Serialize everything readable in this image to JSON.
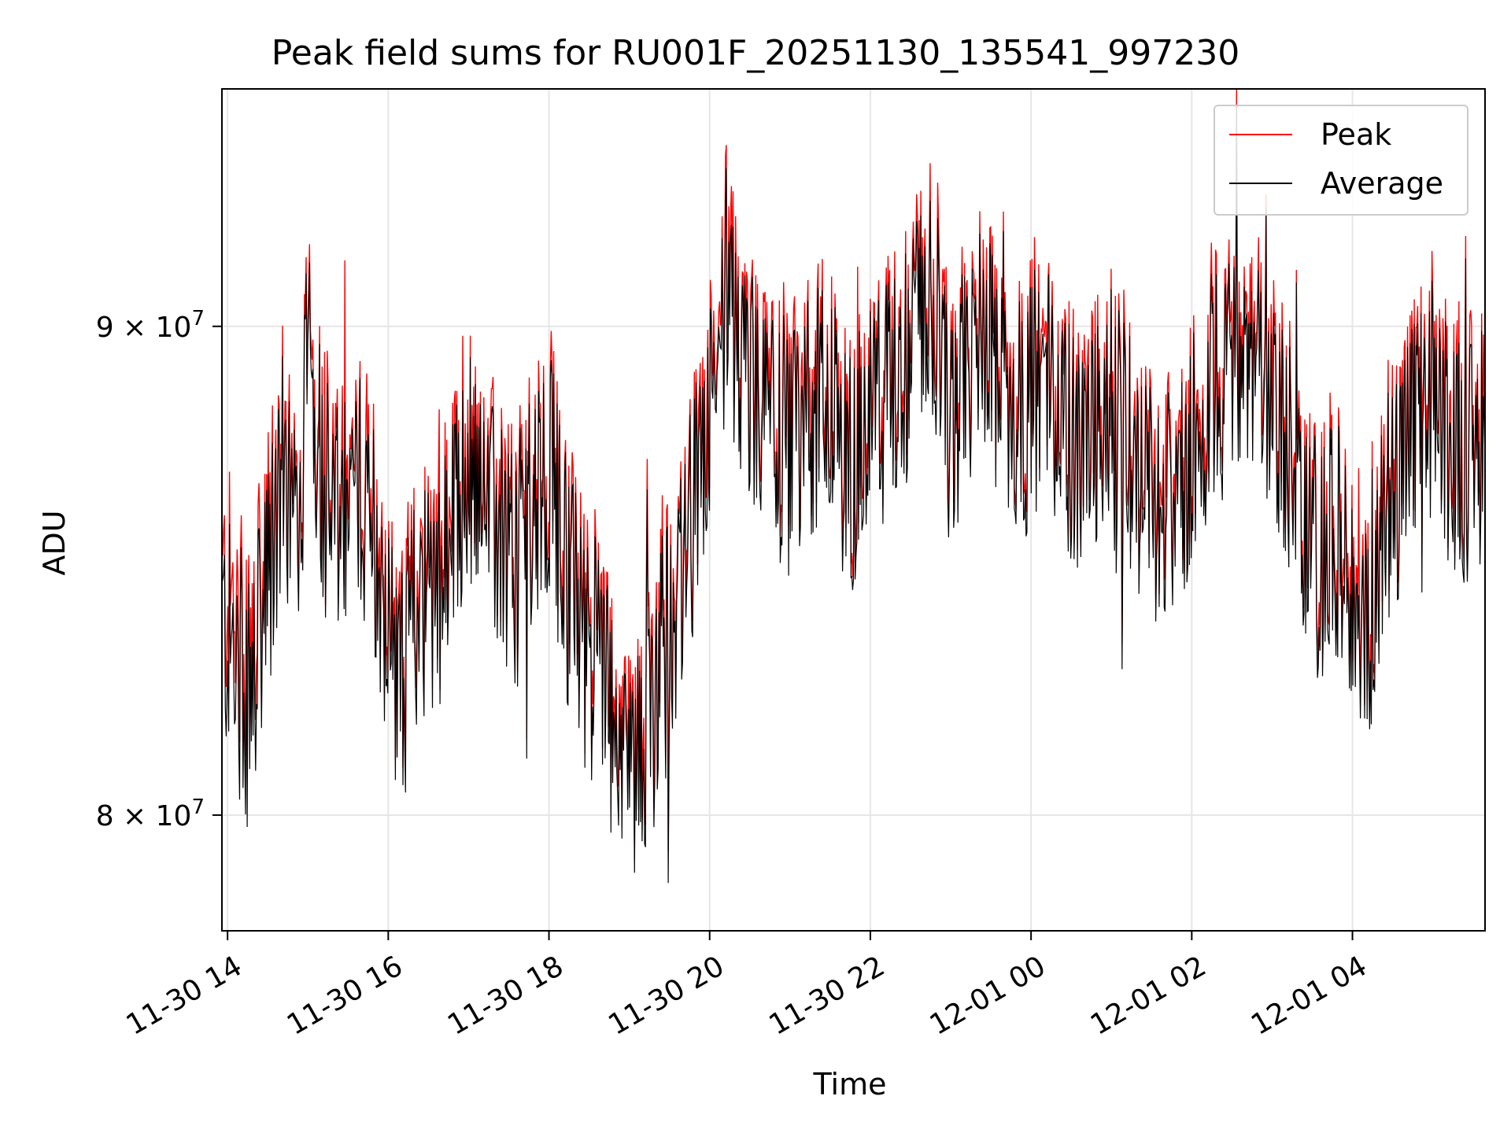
{
  "chart_data": {
    "type": "line",
    "title": "Peak field sums for RU001F_20251130_135541_997230",
    "xlabel": "Time",
    "ylabel": "ADU",
    "yscale": "log",
    "grid": true,
    "legend_position": "top-right",
    "x_range_hours": [
      13.93,
      29.65
    ],
    "y_range": [
      77800000,
      95300000
    ],
    "x_ticks": [
      {
        "hour": 14,
        "label": "11-30 14"
      },
      {
        "hour": 16,
        "label": "11-30 16"
      },
      {
        "hour": 18,
        "label": "11-30 18"
      },
      {
        "hour": 20,
        "label": "11-30 20"
      },
      {
        "hour": 22,
        "label": "11-30 22"
      },
      {
        "hour": 24,
        "label": "12-01 00"
      },
      {
        "hour": 26,
        "label": "12-01 02"
      },
      {
        "hour": 28,
        "label": "12-01 04"
      }
    ],
    "y_ticks": [
      {
        "value": 80000000,
        "mantissa": "8",
        "exponent": "7"
      },
      {
        "value": 90000000,
        "mantissa": "9",
        "exponent": "7"
      }
    ],
    "series": [
      {
        "name": "Peak",
        "color": "#ff0000",
        "values": [
          [
            13.93,
            84500000
          ],
          [
            14.1,
            84000000
          ],
          [
            14.3,
            83200000
          ],
          [
            14.5,
            85000000
          ],
          [
            14.7,
            87500000
          ],
          [
            14.9,
            86500000
          ],
          [
            15.0,
            90200000
          ],
          [
            15.2,
            87000000
          ],
          [
            15.4,
            86000000
          ],
          [
            15.6,
            87000000
          ],
          [
            15.8,
            86500000
          ],
          [
            16.0,
            84000000
          ],
          [
            16.2,
            83000000
          ],
          [
            16.4,
            85000000
          ],
          [
            16.6,
            84500000
          ],
          [
            16.8,
            86000000
          ],
          [
            17.0,
            87500000
          ],
          [
            17.2,
            86500000
          ],
          [
            17.4,
            86000000
          ],
          [
            17.6,
            85500000
          ],
          [
            17.8,
            87000000
          ],
          [
            18.0,
            87500000
          ],
          [
            18.2,
            85500000
          ],
          [
            18.4,
            84000000
          ],
          [
            18.6,
            83500000
          ],
          [
            18.8,
            82500000
          ],
          [
            19.0,
            81000000
          ],
          [
            19.2,
            82000000
          ],
          [
            19.4,
            83500000
          ],
          [
            19.6,
            84500000
          ],
          [
            19.8,
            86500000
          ],
          [
            20.0,
            88500000
          ],
          [
            20.2,
            91000000
          ],
          [
            20.4,
            89500000
          ],
          [
            20.6,
            89000000
          ],
          [
            20.8,
            88000000
          ],
          [
            21.0,
            87800000
          ],
          [
            21.2,
            88500000
          ],
          [
            21.4,
            89000000
          ],
          [
            21.6,
            88000000
          ],
          [
            21.8,
            87500000
          ],
          [
            22.0,
            88500000
          ],
          [
            22.2,
            89000000
          ],
          [
            22.4,
            89500000
          ],
          [
            22.6,
            90500000
          ],
          [
            22.8,
            91000000
          ],
          [
            23.0,
            88000000
          ],
          [
            23.2,
            89500000
          ],
          [
            23.4,
            90500000
          ],
          [
            23.6,
            89000000
          ],
          [
            23.8,
            88500000
          ],
          [
            24.0,
            88800000
          ],
          [
            24.2,
            89500000
          ],
          [
            24.4,
            88500000
          ],
          [
            24.6,
            87500000
          ],
          [
            24.8,
            88500000
          ],
          [
            25.0,
            89000000
          ],
          [
            25.2,
            88000000
          ],
          [
            25.4,
            87000000
          ],
          [
            25.6,
            86500000
          ],
          [
            25.8,
            87000000
          ],
          [
            26.0,
            88000000
          ],
          [
            26.2,
            89000000
          ],
          [
            26.4,
            89500000
          ],
          [
            26.6,
            90000000
          ],
          [
            26.8,
            89500000
          ],
          [
            27.0,
            89000000
          ],
          [
            27.2,
            88000000
          ],
          [
            27.4,
            86000000
          ],
          [
            27.6,
            85500000
          ],
          [
            27.8,
            86000000
          ],
          [
            28.0,
            85000000
          ],
          [
            28.2,
            84500000
          ],
          [
            28.4,
            86500000
          ],
          [
            28.6,
            87500000
          ],
          [
            28.8,
            88500000
          ],
          [
            29.0,
            89000000
          ],
          [
            29.2,
            88000000
          ],
          [
            29.4,
            87500000
          ],
          [
            29.65,
            88200000
          ]
        ]
      },
      {
        "name": "Average",
        "color": "#000000",
        "values": [
          [
            13.93,
            83800000
          ],
          [
            14.1,
            83000000
          ],
          [
            14.3,
            82300000
          ],
          [
            14.5,
            84400000
          ],
          [
            14.7,
            87000000
          ],
          [
            14.9,
            86000000
          ],
          [
            15.0,
            89800000
          ],
          [
            15.2,
            86500000
          ],
          [
            15.4,
            85500000
          ],
          [
            15.6,
            86600000
          ],
          [
            15.8,
            86000000
          ],
          [
            16.0,
            83500000
          ],
          [
            16.2,
            82500000
          ],
          [
            16.4,
            84500000
          ],
          [
            16.6,
            84000000
          ],
          [
            16.8,
            85500000
          ],
          [
            17.0,
            87000000
          ],
          [
            17.2,
            86000000
          ],
          [
            17.4,
            85500000
          ],
          [
            17.6,
            85000000
          ],
          [
            17.8,
            86500000
          ],
          [
            18.0,
            87000000
          ],
          [
            18.2,
            85000000
          ],
          [
            18.4,
            83500000
          ],
          [
            18.6,
            83000000
          ],
          [
            18.8,
            82000000
          ],
          [
            19.0,
            80500000
          ],
          [
            19.2,
            81500000
          ],
          [
            19.4,
            83000000
          ],
          [
            19.6,
            84000000
          ],
          [
            19.8,
            86000000
          ],
          [
            20.0,
            88000000
          ],
          [
            20.2,
            90300000
          ],
          [
            20.4,
            89000000
          ],
          [
            20.6,
            88500000
          ],
          [
            20.8,
            87500000
          ],
          [
            21.0,
            87300000
          ],
          [
            21.2,
            88000000
          ],
          [
            21.4,
            88500000
          ],
          [
            21.6,
            87500000
          ],
          [
            21.8,
            87000000
          ],
          [
            22.0,
            88000000
          ],
          [
            22.2,
            88500000
          ],
          [
            22.4,
            89000000
          ],
          [
            22.6,
            90000000
          ],
          [
            22.8,
            90400000
          ],
          [
            23.0,
            87500000
          ],
          [
            23.2,
            89000000
          ],
          [
            23.4,
            90000000
          ],
          [
            23.6,
            88500000
          ],
          [
            23.8,
            88000000
          ],
          [
            24.0,
            88300000
          ],
          [
            24.2,
            89000000
          ],
          [
            24.4,
            88000000
          ],
          [
            24.6,
            87000000
          ],
          [
            24.8,
            88000000
          ],
          [
            25.0,
            88500000
          ],
          [
            25.2,
            87500000
          ],
          [
            25.4,
            86500000
          ],
          [
            25.6,
            86000000
          ],
          [
            25.8,
            86500000
          ],
          [
            26.0,
            87500000
          ],
          [
            26.2,
            88500000
          ],
          [
            26.4,
            89000000
          ],
          [
            26.6,
            89500000
          ],
          [
            26.8,
            89000000
          ],
          [
            27.0,
            88500000
          ],
          [
            27.2,
            87500000
          ],
          [
            27.4,
            85500000
          ],
          [
            27.6,
            85000000
          ],
          [
            27.8,
            85500000
          ],
          [
            28.0,
            84500000
          ],
          [
            28.2,
            84000000
          ],
          [
            28.4,
            86000000
          ],
          [
            28.6,
            87000000
          ],
          [
            28.8,
            88000000
          ],
          [
            29.0,
            88500000
          ],
          [
            29.2,
            87500000
          ],
          [
            29.4,
            87000000
          ],
          [
            29.65,
            87700000
          ]
        ]
      }
    ]
  }
}
